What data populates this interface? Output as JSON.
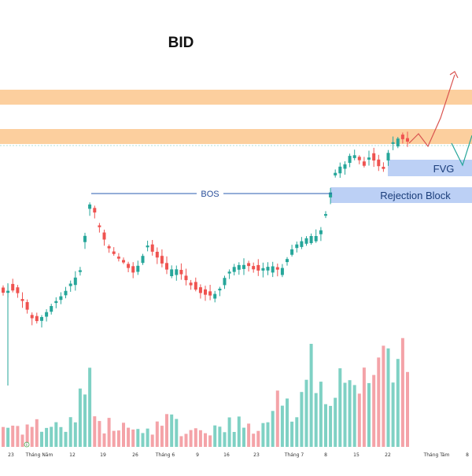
{
  "chart_data": {
    "type": "candlestick",
    "title": "BID",
    "x_tick_labels": [
      "23",
      "Tháng Năm",
      "12",
      "19",
      "26",
      "Tháng 6",
      "9",
      "16",
      "23",
      "Tháng 7",
      "8",
      "15",
      "22",
      "Tháng Tám",
      "8"
    ],
    "annotations": {
      "bos": "BOS",
      "fvg": "FVG",
      "rejection_block": "Rejection Block",
      "time_marker": "i"
    },
    "colors": {
      "up": "#26a69a",
      "down": "#ef5350",
      "volume_up": "#7fd1c4",
      "volume_down": "#f4a3a8",
      "resistance_zone": "#fbc78d",
      "fvg_zone": "#bcd0f5",
      "rejection_zone": "#bcd0f5",
      "bos_line": "#2a5db0",
      "bullish_path": "#d9534f",
      "bearish_path": "#26a69a"
    }
  }
}
